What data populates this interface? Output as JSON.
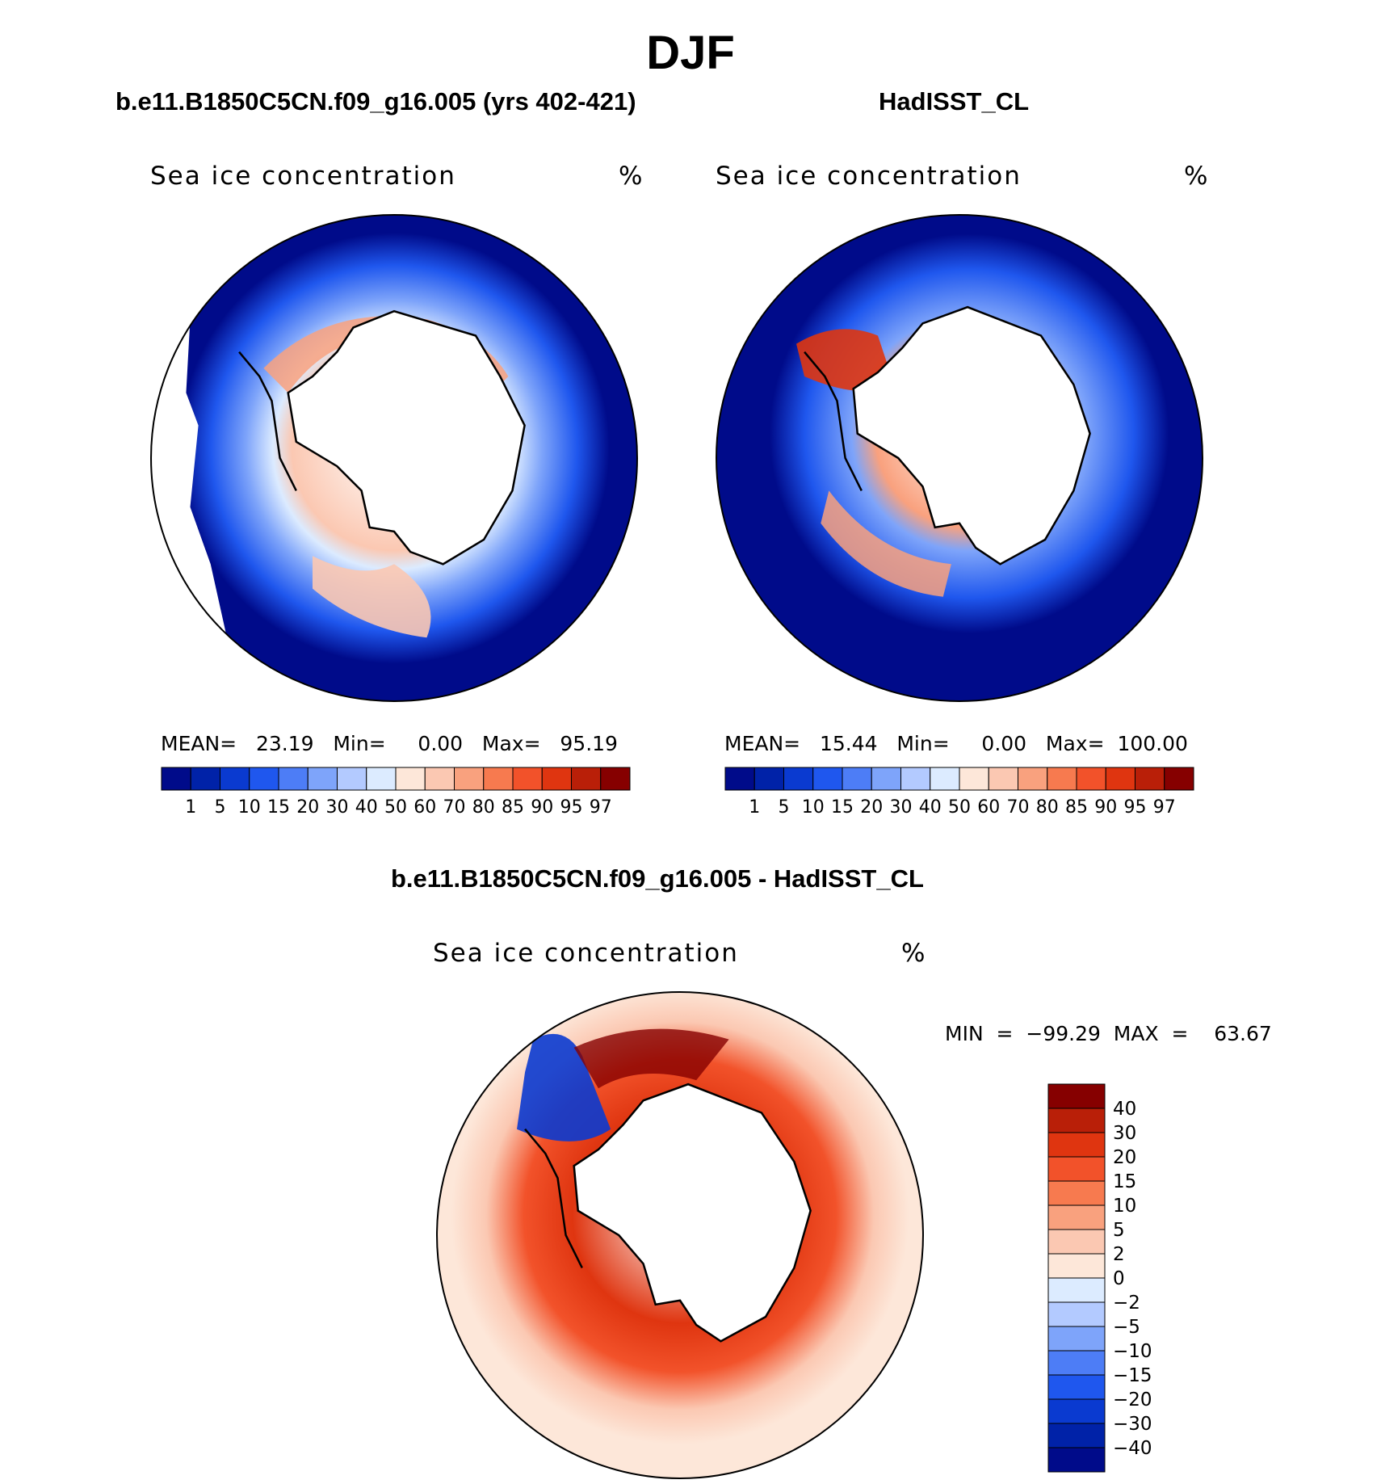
{
  "suptitle": "DJF",
  "panels": {
    "model": {
      "title": "b.e11.B1850C5CN.f09_g16.005 (yrs 402-421)",
      "variable": "Sea ice concentration",
      "units": "%",
      "stats": "MEAN=   23.19   Min=     0.00   Max=   95.19"
    },
    "obs": {
      "title": "HadISST_CL",
      "variable": "Sea ice concentration",
      "units": "%",
      "stats": "MEAN=   15.44   Min=     0.00   Max=  100.00"
    },
    "diff": {
      "title": "b.e11.B1850C5CN.f09_g16.005 - HadISST_CL",
      "variable": "Sea ice concentration",
      "units": "%",
      "stats": "MIN  =  −99.29  MAX  =    63.67"
    }
  },
  "colors": {
    "abs_scale": [
      "#000b8a",
      "#0022a8",
      "#0a3ad0",
      "#1f57ee",
      "#4d7df6",
      "#7ea4fa",
      "#b3caff",
      "#dcebff",
      "#fde7d9",
      "#fbc8b2",
      "#f9a17e",
      "#f77a4f",
      "#f2522a",
      "#df3510",
      "#b91f08",
      "#860000"
    ],
    "diff_scale": [
      "#000b8a",
      "#0022a8",
      "#0a3ad0",
      "#1f57ee",
      "#4d7df6",
      "#7ea4fa",
      "#b3caff",
      "#dcebff",
      "#fde7d9",
      "#fbc8b2",
      "#f9a17e",
      "#f77a4f",
      "#f2522a",
      "#df3510",
      "#b91f08",
      "#860000"
    ]
  },
  "chart_data": [
    {
      "type": "heatmap",
      "projection": "south-polar-stereographic",
      "title": "b.e11.B1850C5CN.f09_g16.005 (yrs 402-421)",
      "variable": "Sea ice concentration",
      "units": "%",
      "stats": {
        "mean": 23.19,
        "min": 0.0,
        "max": 95.19
      },
      "colorbar_levels": [
        "1",
        "5",
        "10",
        "15",
        "20",
        "30",
        "40",
        "50",
        "60",
        "70",
        "80",
        "85",
        "90",
        "95",
        "97"
      ]
    },
    {
      "type": "heatmap",
      "projection": "south-polar-stereographic",
      "title": "HadISST_CL",
      "variable": "Sea ice concentration",
      "units": "%",
      "stats": {
        "mean": 15.44,
        "min": 0.0,
        "max": 100.0
      },
      "colorbar_levels": [
        "1",
        "5",
        "10",
        "15",
        "20",
        "30",
        "40",
        "50",
        "60",
        "70",
        "80",
        "85",
        "90",
        "95",
        "97"
      ]
    },
    {
      "type": "heatmap",
      "projection": "south-polar-stereographic",
      "title": "b.e11.B1850C5CN.f09_g16.005 - HadISST_CL",
      "variable": "Sea ice concentration",
      "units": "%",
      "stats": {
        "min": -99.29,
        "max": 63.67
      },
      "colorbar_levels": [
        "40",
        "30",
        "20",
        "15",
        "10",
        "5",
        "2",
        "0",
        "−2",
        "−5",
        "−10",
        "−15",
        "−20",
        "−30",
        "−40"
      ]
    }
  ]
}
